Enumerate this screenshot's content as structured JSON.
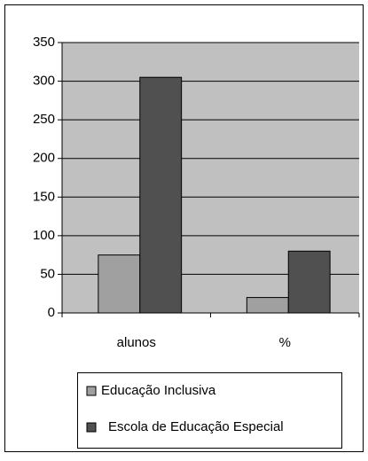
{
  "chart_data": {
    "type": "bar",
    "categories": [
      "alunos",
      "%"
    ],
    "series": [
      {
        "name": "Educação Inclusiva",
        "color": "#a0a0a0",
        "values": [
          75,
          20
        ]
      },
      {
        "name": "Escola de Educação Especial",
        "color": "#505050",
        "values": [
          305,
          80
        ]
      }
    ],
    "ylim": [
      0,
      350
    ],
    "yticks": [
      0,
      50,
      100,
      150,
      200,
      250,
      300,
      350
    ],
    "grid": true,
    "legend": "bottom",
    "plot_background": "#c0c0c0"
  }
}
